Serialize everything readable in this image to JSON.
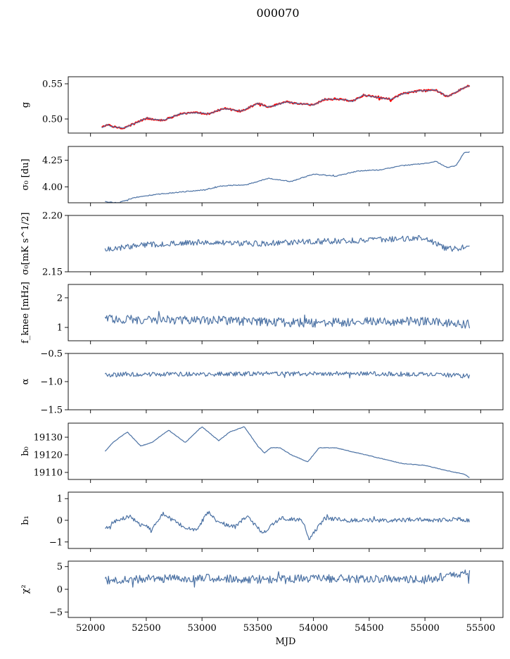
{
  "title": "000070",
  "colors": {
    "series": "#4c72a4",
    "reference": "#ff0000",
    "axis": "#000000"
  },
  "chart_data": [
    {
      "type": "line",
      "panel": "g",
      "ylabel": "g",
      "xlim": [
        51800,
        55700
      ],
      "ylim": [
        0.48,
        0.56
      ],
      "yticks": [
        0.5,
        0.55
      ],
      "ytick_labels": [
        "0.50",
        "0.55"
      ],
      "xticks": [
        52000,
        52500,
        53000,
        53500,
        54000,
        54500,
        55000,
        55500
      ],
      "xtick_labels": [],
      "noise": 0.0008,
      "series": [
        {
          "color": "#ff0000",
          "width": 2.2,
          "x": [
            52100,
            52150,
            52200,
            52300,
            52400,
            52500,
            52650,
            52800,
            52950,
            53050,
            53200,
            53350,
            53500,
            53600,
            53750,
            53850,
            54000,
            54100,
            54250,
            54350,
            54450,
            54600,
            54700,
            54800,
            54950,
            55100,
            55200,
            55300,
            55400
          ],
          "y": [
            0.488,
            0.492,
            0.489,
            0.487,
            0.494,
            0.501,
            0.498,
            0.507,
            0.509,
            0.507,
            0.515,
            0.511,
            0.522,
            0.517,
            0.524,
            0.522,
            0.52,
            0.528,
            0.528,
            0.525,
            0.534,
            0.53,
            0.528,
            0.536,
            0.54,
            0.541,
            0.532,
            0.54,
            0.548
          ]
        },
        {
          "color": "#4c72a4",
          "width": 1.2,
          "x": [
            52100,
            52150,
            52200,
            52300,
            52400,
            52500,
            52650,
            52800,
            52950,
            53050,
            53200,
            53350,
            53500,
            53600,
            53750,
            53850,
            54000,
            54100,
            54250,
            54350,
            54450,
            54600,
            54700,
            54800,
            54950,
            55100,
            55200,
            55300,
            55400
          ],
          "y": [
            0.488,
            0.492,
            0.489,
            0.487,
            0.494,
            0.501,
            0.498,
            0.507,
            0.509,
            0.507,
            0.515,
            0.511,
            0.522,
            0.517,
            0.524,
            0.522,
            0.52,
            0.528,
            0.528,
            0.525,
            0.534,
            0.53,
            0.528,
            0.536,
            0.54,
            0.541,
            0.532,
            0.54,
            0.548
          ]
        }
      ]
    },
    {
      "type": "line",
      "panel": "sigma0",
      "ylabel": "σ₀ [du]",
      "xlim": [
        51800,
        55700
      ],
      "ylim": [
        3.85,
        4.38
      ],
      "yticks": [
        4.0,
        4.25
      ],
      "ytick_labels": [
        "4.00",
        "4.25"
      ],
      "xticks": [
        52000,
        52500,
        53000,
        53500,
        54000,
        54500,
        55000,
        55500
      ],
      "xtick_labels": [],
      "noise": 0.004,
      "series": [
        {
          "color": "#4c72a4",
          "width": 1.2,
          "x": [
            52130,
            52250,
            52400,
            52600,
            52800,
            53000,
            53200,
            53400,
            53600,
            53800,
            54000,
            54200,
            54400,
            54600,
            54800,
            55000,
            55100,
            55200,
            55280,
            55350,
            55400
          ],
          "y": [
            3.86,
            3.85,
            3.9,
            3.93,
            3.95,
            3.97,
            4.01,
            4.02,
            4.08,
            4.05,
            4.12,
            4.1,
            4.15,
            4.16,
            4.2,
            4.22,
            4.24,
            4.18,
            4.2,
            4.32,
            4.33
          ]
        }
      ]
    },
    {
      "type": "line",
      "panel": "sigma0_noise",
      "ylabel": "σ₀[mK s^1/2]",
      "xlim": [
        51800,
        55700
      ],
      "ylim": [
        2.15,
        2.2
      ],
      "yticks": [
        2.15,
        2.2
      ],
      "ytick_labels": [
        "2.15",
        "2.20"
      ],
      "xticks": [
        52000,
        52500,
        53000,
        53500,
        54000,
        54500,
        55000,
        55500
      ],
      "xtick_labels": [],
      "noise": 0.0025,
      "series": [
        {
          "color": "#4c72a4",
          "width": 1.2,
          "x": [
            52130,
            52500,
            53000,
            53500,
            54000,
            54500,
            55000,
            55200,
            55400
          ],
          "y": [
            2.17,
            2.174,
            2.176,
            2.175,
            2.177,
            2.178,
            2.18,
            2.17,
            2.172
          ]
        }
      ]
    },
    {
      "type": "line",
      "panel": "fknee",
      "ylabel": "f_knee [mHz]",
      "xlim": [
        51800,
        55700
      ],
      "ylim": [
        0.55,
        2.45
      ],
      "yticks": [
        1,
        2
      ],
      "ytick_labels": [
        "1",
        "2"
      ],
      "xticks": [
        52000,
        52500,
        53000,
        53500,
        54000,
        54500,
        55000,
        55500
      ],
      "xtick_labels": [],
      "noise": 0.15,
      "series": [
        {
          "color": "#4c72a4",
          "width": 1.2,
          "x": [
            52130,
            52500,
            53000,
            53500,
            54000,
            54500,
            55000,
            55400
          ],
          "y": [
            1.3,
            1.25,
            1.25,
            1.2,
            1.15,
            1.2,
            1.2,
            1.1
          ]
        }
      ]
    },
    {
      "type": "line",
      "panel": "alpha",
      "ylabel": "α",
      "xlim": [
        51800,
        55700
      ],
      "ylim": [
        -1.5,
        -0.5
      ],
      "yticks": [
        -1.5,
        -1.0,
        -0.5
      ],
      "ytick_labels": [
        "−1.5",
        "−1.0",
        "−0.5"
      ],
      "xticks": [
        52000,
        52500,
        53000,
        53500,
        54000,
        54500,
        55000,
        55500
      ],
      "xtick_labels": [],
      "noise": 0.04,
      "series": [
        {
          "color": "#4c72a4",
          "width": 1.2,
          "x": [
            52130,
            52500,
            53000,
            53500,
            54000,
            54500,
            55000,
            55400
          ],
          "y": [
            -0.88,
            -0.87,
            -0.87,
            -0.86,
            -0.86,
            -0.86,
            -0.87,
            -0.9
          ]
        }
      ]
    },
    {
      "type": "line",
      "panel": "b0",
      "ylabel": "b₀",
      "xlim": [
        51800,
        55700
      ],
      "ylim": [
        19106,
        19138
      ],
      "yticks": [
        19110,
        19120,
        19130
      ],
      "ytick_labels": [
        "19110",
        "19120",
        "19130"
      ],
      "xticks": [
        52000,
        52500,
        53000,
        53500,
        54000,
        54500,
        55000,
        55500
      ],
      "xtick_labels": [],
      "noise": 0.15,
      "series": [
        {
          "color": "#4c72a4",
          "width": 1.2,
          "x": [
            52130,
            52200,
            52330,
            52450,
            52550,
            52700,
            52850,
            53000,
            53150,
            53250,
            53380,
            53500,
            53560,
            53620,
            53700,
            53800,
            53950,
            54050,
            54200,
            54400,
            54600,
            54800,
            55000,
            55200,
            55350,
            55400
          ],
          "y": [
            19122,
            19127,
            19133,
            19125,
            19127,
            19134,
            19127,
            19136,
            19128,
            19133,
            19136,
            19125,
            19121,
            19124,
            19124,
            19120,
            19116,
            19124,
            19124,
            19121,
            19118,
            19115,
            19114,
            19111,
            19109,
            19107
          ]
        }
      ]
    },
    {
      "type": "line",
      "panel": "b1",
      "ylabel": "b₁",
      "xlim": [
        51800,
        55700
      ],
      "ylim": [
        -1.3,
        1.3
      ],
      "yticks": [
        -1,
        0,
        1
      ],
      "ytick_labels": [
        "−1",
        "0",
        "1"
      ],
      "xticks": [
        52000,
        52500,
        53000,
        53500,
        54000,
        54500,
        55000,
        55500
      ],
      "xtick_labels": [],
      "noise": 0.09,
      "series": [
        {
          "color": "#4c72a4",
          "width": 1.2,
          "x": [
            52130,
            52200,
            52350,
            52450,
            52550,
            52650,
            52800,
            52950,
            53050,
            53150,
            53300,
            53400,
            53550,
            53700,
            53900,
            53960,
            54100,
            54300,
            54500,
            54700,
            54900,
            55100,
            55300,
            55400
          ],
          "y": [
            -0.4,
            -0.1,
            0.2,
            -0.2,
            -0.4,
            0.3,
            -0.2,
            -0.5,
            0.4,
            -0.1,
            -0.3,
            0.2,
            -0.6,
            0.1,
            0.0,
            -0.9,
            0.1,
            0.0,
            0.0,
            0.0,
            0.05,
            0.0,
            0.05,
            0.0
          ]
        }
      ]
    },
    {
      "type": "line",
      "panel": "chi2",
      "ylabel": "χ²",
      "xlim": [
        51800,
        55700
      ],
      "ylim": [
        -6.2,
        6.2
      ],
      "yticks": [
        -5,
        0,
        5
      ],
      "ytick_labels": [
        "−5",
        "0",
        "5"
      ],
      "xticks": [
        52000,
        52500,
        53000,
        53500,
        54000,
        54500,
        55000,
        55500
      ],
      "xtick_labels": [
        "52000",
        "52500",
        "53000",
        "53500",
        "54000",
        "54500",
        "55000",
        "55500"
      ],
      "xlabel": "MJD",
      "noise": 0.9,
      "series": [
        {
          "color": "#4c72a4",
          "width": 1.2,
          "x": [
            52130,
            52500,
            53000,
            53500,
            54000,
            54500,
            55000,
            55400
          ],
          "y": [
            2.0,
            2.3,
            2.5,
            2.2,
            2.4,
            2.3,
            2.2,
            3.5
          ]
        }
      ]
    }
  ]
}
